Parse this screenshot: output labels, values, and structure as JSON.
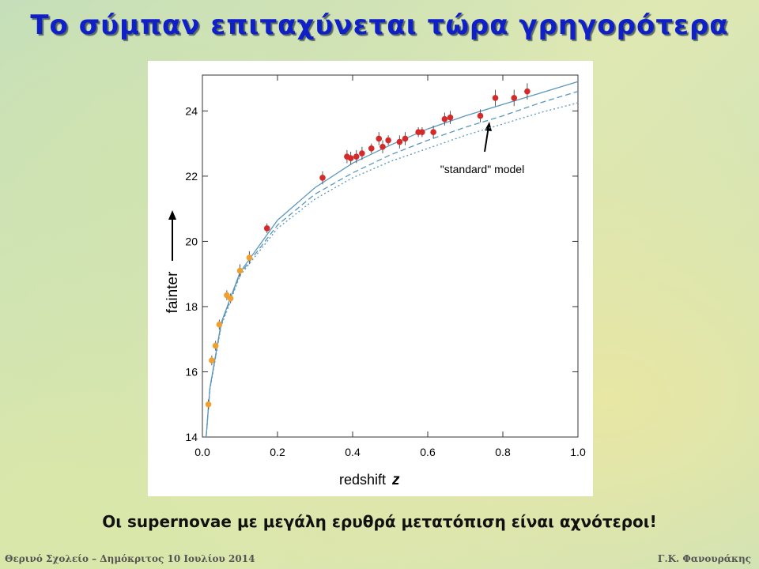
{
  "slide": {
    "title": "Το σύμπαν επιταχύνεται τώρα γρηγορότερα",
    "caption": "Οι supernovae με μεγάλη ερυθρά μετατόπιση είναι αχνότεροι!",
    "footer_left": "Θερινό Σχολείο – Δημόκριτος  10 Ιουλίου 2014",
    "footer_right": "Γ.Κ. Φανουράκης"
  },
  "chart_data": {
    "type": "scatter",
    "x_label": "redshift",
    "x_symbol": "z",
    "y_label": "fainter",
    "annotation": "\"standard\" model",
    "xlim": [
      0,
      1
    ],
    "ylim": [
      14,
      25.1
    ],
    "xticks": [
      {
        "value": 0,
        "label": "0.0"
      },
      0.2,
      0.4,
      0.6,
      0.8,
      {
        "value": 1,
        "label": "1.0"
      }
    ],
    "yticks": [
      14,
      16,
      18,
      20,
      22,
      24
    ],
    "series": [
      {
        "type": "line",
        "style": "solid",
        "color": "#5b97bd",
        "x": [
          0.01,
          0.02,
          0.05,
          0.1,
          0.2,
          0.3,
          0.4,
          0.5,
          0.6,
          0.7,
          0.8,
          0.9,
          1.0
        ],
        "values": [
          14.0,
          15.5,
          17.5,
          19.05,
          20.65,
          21.65,
          22.4,
          22.95,
          23.45,
          23.85,
          24.2,
          24.55,
          24.9
        ]
      },
      {
        "type": "line",
        "style": "dashed",
        "color": "#5b97bd",
        "x": [
          0.01,
          0.02,
          0.05,
          0.1,
          0.2,
          0.3,
          0.4,
          0.5,
          0.6,
          0.7,
          0.8,
          0.9,
          1.0
        ],
        "values": [
          14.0,
          15.5,
          17.45,
          19.0,
          20.5,
          21.45,
          22.1,
          22.65,
          23.1,
          23.5,
          23.85,
          24.25,
          24.6
        ]
      },
      {
        "type": "line",
        "style": "dotted",
        "color": "#5b97bd",
        "x": [
          0.01,
          0.02,
          0.05,
          0.1,
          0.2,
          0.3,
          0.4,
          0.5,
          0.6,
          0.7,
          0.8,
          0.9,
          1.0
        ],
        "values": [
          14.0,
          15.45,
          17.4,
          18.95,
          20.4,
          21.3,
          21.95,
          22.45,
          22.85,
          23.25,
          23.6,
          23.95,
          24.25
        ]
      },
      {
        "type": "scatter",
        "color": "#f0a030",
        "x": [
          0.016,
          0.025,
          0.035,
          0.045,
          0.065,
          0.075,
          0.1,
          0.125
        ],
        "values": [
          15.0,
          16.35,
          16.8,
          17.45,
          18.35,
          18.25,
          19.1,
          19.5
        ],
        "errors": [
          0.15,
          0.15,
          0.15,
          0.15,
          0.15,
          0.15,
          0.2,
          0.2
        ]
      },
      {
        "type": "scatter",
        "color": "#d42a2a",
        "x": [
          0.172,
          0.32,
          0.385,
          0.395,
          0.41,
          0.425,
          0.45,
          0.47,
          0.48,
          0.495,
          0.525,
          0.54,
          0.575,
          0.585,
          0.615,
          0.645,
          0.66,
          0.74,
          0.78,
          0.83,
          0.865
        ],
        "values": [
          20.4,
          21.95,
          22.6,
          22.55,
          22.6,
          22.7,
          22.85,
          23.15,
          22.9,
          23.1,
          23.05,
          23.15,
          23.35,
          23.35,
          23.35,
          23.75,
          23.8,
          23.85,
          24.4,
          24.4,
          24.6
        ],
        "errors": [
          0.15,
          0.2,
          0.2,
          0.2,
          0.2,
          0.2,
          0.15,
          0.2,
          0.2,
          0.15,
          0.2,
          0.2,
          0.15,
          0.15,
          0.2,
          0.2,
          0.2,
          0.2,
          0.25,
          0.25,
          0.25
        ]
      }
    ]
  }
}
